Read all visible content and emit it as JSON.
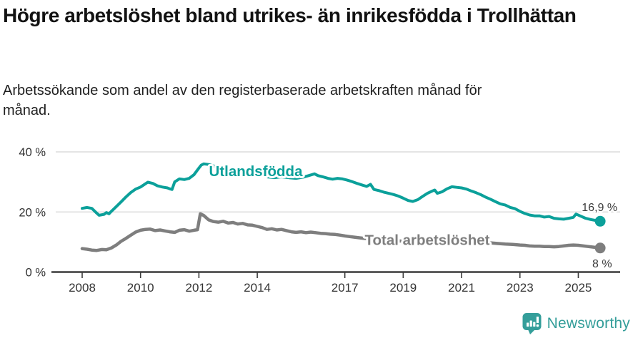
{
  "header": {
    "title": "Högre arbetslöshet bland utrikes- än inrikesfödda i Trollhättan",
    "subtitle": "Arbetssökande som andel av den registerbaserade arbetskraften månad för månad."
  },
  "footer": {
    "brand": "Newsworthy",
    "logo_icon": "bar-chart-speech-bubble-icon",
    "brand_color": "#349e9a"
  },
  "chart_data": {
    "type": "line",
    "title": "Högre arbetslöshet bland utrikes- än inrikesfödda i Trollhättan",
    "subtitle": "Arbetssökande som andel av den registerbaserade arbetskraften månad för månad.",
    "unit": "%",
    "grid_on": true,
    "grid_color": "#dcdcdc",
    "axis_color": "#3c3c3c",
    "text_color": "#333333",
    "annotation_color": "#3a3a3a",
    "x_axis": {
      "range": [
        2006.95,
        2026.45
      ],
      "ticks": [
        {
          "value": 2008,
          "label": "2008"
        },
        {
          "value": 2010,
          "label": "2010"
        },
        {
          "value": 2012,
          "label": "2012"
        },
        {
          "value": 2014,
          "label": "2014"
        },
        {
          "value": 2017,
          "label": "2017"
        },
        {
          "value": 2019,
          "label": "2019"
        },
        {
          "value": 2021,
          "label": "2021"
        },
        {
          "value": 2023,
          "label": "2023"
        },
        {
          "value": 2025,
          "label": "2025"
        }
      ]
    },
    "y_axis": {
      "range": [
        0,
        43
      ],
      "ticks": [
        {
          "value": 0,
          "label": "0 %"
        },
        {
          "value": 20,
          "label": "20 %"
        },
        {
          "value": 40,
          "label": "40 %"
        }
      ]
    },
    "series": [
      {
        "id": "utlandsfodda",
        "name": "Utlandsfödda",
        "color": "#0ba09a",
        "line_width": 4,
        "end_label": "16,9 %",
        "end_value": 16.9,
        "points": [
          [
            2008.0,
            21.2
          ],
          [
            2008.17,
            21.5
          ],
          [
            2008.33,
            21.2
          ],
          [
            2008.5,
            19.6
          ],
          [
            2008.58,
            18.9
          ],
          [
            2008.75,
            19.2
          ],
          [
            2008.83,
            19.8
          ],
          [
            2008.92,
            19.4
          ],
          [
            2009.0,
            20.2
          ],
          [
            2009.17,
            21.8
          ],
          [
            2009.33,
            23.3
          ],
          [
            2009.5,
            25.0
          ],
          [
            2009.67,
            26.5
          ],
          [
            2009.83,
            27.6
          ],
          [
            2010.0,
            28.3
          ],
          [
            2010.17,
            29.4
          ],
          [
            2010.25,
            29.9
          ],
          [
            2010.42,
            29.5
          ],
          [
            2010.58,
            28.7
          ],
          [
            2010.75,
            28.3
          ],
          [
            2010.92,
            28.0
          ],
          [
            2011.0,
            27.7
          ],
          [
            2011.08,
            27.5
          ],
          [
            2011.17,
            30.0
          ],
          [
            2011.33,
            31.0
          ],
          [
            2011.5,
            30.8
          ],
          [
            2011.67,
            31.2
          ],
          [
            2011.83,
            32.4
          ],
          [
            2012.0,
            34.6
          ],
          [
            2012.08,
            35.6
          ],
          [
            2012.17,
            36.0
          ],
          [
            2012.33,
            35.8
          ],
          [
            2012.58,
            35.1
          ],
          [
            2012.83,
            34.7
          ],
          [
            2013.08,
            34.2
          ],
          [
            2013.33,
            33.7
          ],
          [
            2013.58,
            33.3
          ],
          [
            2013.83,
            32.8
          ],
          [
            2014.08,
            32.3
          ],
          [
            2014.33,
            31.7
          ],
          [
            2014.58,
            31.4
          ],
          [
            2014.83,
            31.7
          ],
          [
            2015.08,
            31.4
          ],
          [
            2015.33,
            31.2
          ],
          [
            2015.58,
            31.6
          ],
          [
            2015.83,
            32.3
          ],
          [
            2015.96,
            32.7
          ],
          [
            2016.08,
            32.1
          ],
          [
            2016.25,
            31.7
          ],
          [
            2016.42,
            31.2
          ],
          [
            2016.58,
            30.9
          ],
          [
            2016.75,
            31.2
          ],
          [
            2016.92,
            31.0
          ],
          [
            2017.08,
            30.6
          ],
          [
            2017.25,
            30.1
          ],
          [
            2017.42,
            29.5
          ],
          [
            2017.58,
            29.0
          ],
          [
            2017.75,
            28.5
          ],
          [
            2017.88,
            29.2
          ],
          [
            2018.0,
            27.5
          ],
          [
            2018.17,
            27.1
          ],
          [
            2018.33,
            26.6
          ],
          [
            2018.5,
            26.2
          ],
          [
            2018.67,
            25.8
          ],
          [
            2018.83,
            25.3
          ],
          [
            2019.0,
            24.6
          ],
          [
            2019.17,
            23.8
          ],
          [
            2019.33,
            23.5
          ],
          [
            2019.5,
            24.1
          ],
          [
            2019.67,
            25.2
          ],
          [
            2019.83,
            26.2
          ],
          [
            2020.0,
            27.0
          ],
          [
            2020.08,
            27.3
          ],
          [
            2020.17,
            26.2
          ],
          [
            2020.33,
            26.7
          ],
          [
            2020.5,
            27.7
          ],
          [
            2020.67,
            28.4
          ],
          [
            2020.83,
            28.2
          ],
          [
            2021.0,
            28.0
          ],
          [
            2021.17,
            27.6
          ],
          [
            2021.33,
            27.0
          ],
          [
            2021.5,
            26.4
          ],
          [
            2021.67,
            25.7
          ],
          [
            2021.83,
            24.9
          ],
          [
            2022.0,
            24.2
          ],
          [
            2022.17,
            23.4
          ],
          [
            2022.33,
            22.7
          ],
          [
            2022.5,
            22.3
          ],
          [
            2022.67,
            21.5
          ],
          [
            2022.83,
            21.1
          ],
          [
            2023.0,
            20.2
          ],
          [
            2023.17,
            19.5
          ],
          [
            2023.33,
            19.0
          ],
          [
            2023.5,
            18.7
          ],
          [
            2023.67,
            18.7
          ],
          [
            2023.83,
            18.3
          ],
          [
            2024.0,
            18.5
          ],
          [
            2024.17,
            17.9
          ],
          [
            2024.33,
            17.7
          ],
          [
            2024.5,
            17.6
          ],
          [
            2024.67,
            17.9
          ],
          [
            2024.83,
            18.2
          ],
          [
            2024.92,
            19.3
          ],
          [
            2025.08,
            18.6
          ],
          [
            2025.25,
            17.9
          ],
          [
            2025.42,
            17.5
          ],
          [
            2025.58,
            17.2
          ],
          [
            2025.75,
            16.9
          ]
        ]
      },
      {
        "id": "total",
        "name": "Total arbetslöshet",
        "color": "#7e7e7e",
        "line_width": 4.5,
        "end_label": "8 %",
        "end_value": 8,
        "points": [
          [
            2008.0,
            7.8
          ],
          [
            2008.17,
            7.6
          ],
          [
            2008.33,
            7.3
          ],
          [
            2008.5,
            7.2
          ],
          [
            2008.67,
            7.5
          ],
          [
            2008.83,
            7.4
          ],
          [
            2009.0,
            8.0
          ],
          [
            2009.17,
            9.0
          ],
          [
            2009.33,
            10.2
          ],
          [
            2009.5,
            11.2
          ],
          [
            2009.67,
            12.3
          ],
          [
            2009.83,
            13.3
          ],
          [
            2010.0,
            13.9
          ],
          [
            2010.17,
            14.2
          ],
          [
            2010.33,
            14.3
          ],
          [
            2010.5,
            13.8
          ],
          [
            2010.67,
            14.0
          ],
          [
            2010.83,
            13.7
          ],
          [
            2011.0,
            13.4
          ],
          [
            2011.17,
            13.2
          ],
          [
            2011.33,
            13.9
          ],
          [
            2011.5,
            14.1
          ],
          [
            2011.67,
            13.6
          ],
          [
            2011.83,
            13.9
          ],
          [
            2011.95,
            14.1
          ],
          [
            2012.05,
            19.4
          ],
          [
            2012.17,
            18.8
          ],
          [
            2012.33,
            17.4
          ],
          [
            2012.5,
            16.8
          ],
          [
            2012.67,
            16.6
          ],
          [
            2012.83,
            16.9
          ],
          [
            2013.0,
            16.3
          ],
          [
            2013.17,
            16.5
          ],
          [
            2013.33,
            16.0
          ],
          [
            2013.5,
            16.2
          ],
          [
            2013.67,
            15.7
          ],
          [
            2013.83,
            15.6
          ],
          [
            2014.0,
            15.2
          ],
          [
            2014.17,
            14.8
          ],
          [
            2014.33,
            14.2
          ],
          [
            2014.5,
            14.4
          ],
          [
            2014.67,
            14.0
          ],
          [
            2014.83,
            14.2
          ],
          [
            2015.0,
            13.8
          ],
          [
            2015.17,
            13.4
          ],
          [
            2015.33,
            13.2
          ],
          [
            2015.5,
            13.4
          ],
          [
            2015.67,
            13.1
          ],
          [
            2015.83,
            13.3
          ],
          [
            2016.0,
            13.1
          ],
          [
            2016.17,
            12.9
          ],
          [
            2016.33,
            12.8
          ],
          [
            2016.5,
            12.6
          ],
          [
            2016.67,
            12.5
          ],
          [
            2016.83,
            12.3
          ],
          [
            2017.0,
            12.0
          ],
          [
            2017.17,
            11.8
          ],
          [
            2017.33,
            11.6
          ],
          [
            2017.5,
            11.4
          ],
          [
            2017.75,
            11.1
          ],
          [
            2018.0,
            10.9
          ],
          [
            2018.25,
            10.7
          ],
          [
            2018.5,
            10.5
          ],
          [
            2018.75,
            10.4
          ],
          [
            2019.0,
            10.3
          ],
          [
            2019.25,
            10.2
          ],
          [
            2019.5,
            10.1
          ],
          [
            2019.75,
            10.3
          ],
          [
            2020.0,
            10.6
          ],
          [
            2020.25,
            10.9
          ],
          [
            2020.5,
            11.0
          ],
          [
            2020.75,
            10.8
          ],
          [
            2021.0,
            10.7
          ],
          [
            2021.25,
            10.4
          ],
          [
            2021.5,
            10.1
          ],
          [
            2021.75,
            9.9
          ],
          [
            2022.0,
            9.7
          ],
          [
            2022.25,
            9.5
          ],
          [
            2022.5,
            9.3
          ],
          [
            2022.75,
            9.2
          ],
          [
            2023.0,
            9.0
          ],
          [
            2023.17,
            8.9
          ],
          [
            2023.33,
            8.7
          ],
          [
            2023.5,
            8.6
          ],
          [
            2023.67,
            8.6
          ],
          [
            2023.83,
            8.5
          ],
          [
            2024.0,
            8.5
          ],
          [
            2024.17,
            8.4
          ],
          [
            2024.33,
            8.5
          ],
          [
            2024.5,
            8.7
          ],
          [
            2024.67,
            8.9
          ],
          [
            2024.83,
            9.0
          ],
          [
            2025.0,
            8.9
          ],
          [
            2025.17,
            8.7
          ],
          [
            2025.33,
            8.5
          ],
          [
            2025.5,
            8.3
          ],
          [
            2025.67,
            8.1
          ],
          [
            2025.75,
            8.0
          ]
        ]
      }
    ],
    "legend_position": "inline-labels"
  }
}
